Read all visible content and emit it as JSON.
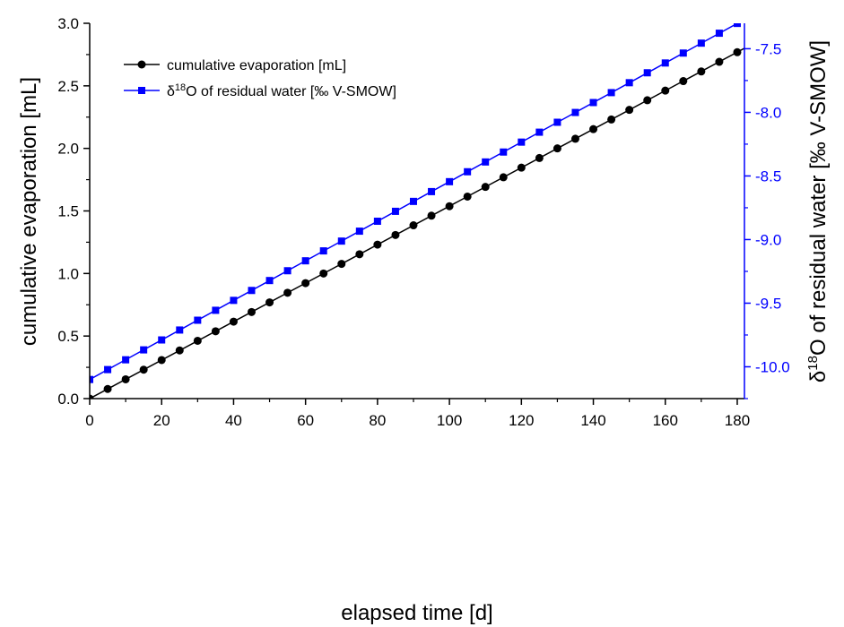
{
  "chart_data": {
    "type": "line",
    "x_axis": {
      "label": "elapsed time [d]",
      "range": [
        0,
        182
      ],
      "ticks": [
        0,
        20,
        40,
        60,
        80,
        100,
        120,
        140,
        160,
        180
      ],
      "tick_labels": [
        "0",
        "20",
        "40",
        "60",
        "80",
        "100",
        "120",
        "140",
        "160",
        "180"
      ]
    },
    "y_axis_left": {
      "label": "cumulative evaporation [mL]",
      "range": [
        0,
        3
      ],
      "ticks": [
        0,
        0.5,
        1,
        1.5,
        2,
        2.5,
        3
      ],
      "tick_labels": [
        "0.0",
        "0.5",
        "1.0",
        "1.5",
        "2.0",
        "2.5",
        "3.0"
      ]
    },
    "y_axis_right": {
      "label_prefix": "δ",
      "label_sup": "18",
      "label_rest": "O of residual water [‰ V-SMOW]",
      "range": [
        -10.25,
        -7.3
      ],
      "ticks": [
        -10,
        -9.5,
        -9,
        -8.5,
        -8,
        -7.5
      ],
      "tick_labels": [
        "-10.0",
        "-9.5",
        "-9.0",
        "-8.5",
        "-8.0",
        "-7.5"
      ]
    },
    "grid": false,
    "legend_position": "top-left",
    "series": [
      {
        "name": "cumulative evaporation [mL]",
        "axis": "left",
        "color": "#000000",
        "marker": "circle",
        "x": [
          0,
          5,
          10,
          15,
          20,
          25,
          30,
          35,
          40,
          45,
          50,
          55,
          60,
          65,
          70,
          75,
          80,
          85,
          90,
          95,
          100,
          105,
          110,
          115,
          120,
          125,
          130,
          135,
          140,
          145,
          150,
          155,
          160,
          165,
          170,
          175,
          180
        ],
        "y": [
          0,
          0.077,
          0.154,
          0.231,
          0.308,
          0.385,
          0.462,
          0.538,
          0.615,
          0.692,
          0.769,
          0.846,
          0.923,
          1.0,
          1.077,
          1.154,
          1.231,
          1.308,
          1.385,
          1.462,
          1.538,
          1.615,
          1.692,
          1.769,
          1.846,
          1.923,
          2.0,
          2.077,
          2.154,
          2.231,
          2.308,
          2.385,
          2.462,
          2.538,
          2.615,
          2.692,
          2.769
        ],
        "fit_line_x": [
          0,
          182
        ],
        "fit_line_y": [
          0,
          2.8
        ]
      },
      {
        "name_prefix": "δ",
        "name_sup": "18",
        "name_rest": "O of residual water [‰ V-SMOW]",
        "axis": "right",
        "color": "#0000ff",
        "marker": "square",
        "x": [
          0,
          5,
          10,
          15,
          20,
          25,
          30,
          35,
          40,
          45,
          50,
          55,
          60,
          65,
          70,
          75,
          80,
          85,
          90,
          95,
          100,
          105,
          110,
          115,
          120,
          125,
          130,
          135,
          140,
          145,
          150,
          155,
          160,
          165,
          170,
          175,
          180
        ],
        "y": [
          -10.1,
          -10.022,
          -9.945,
          -9.867,
          -9.789,
          -9.711,
          -9.634,
          -9.556,
          -9.478,
          -9.4,
          -9.322,
          -9.245,
          -9.167,
          -9.089,
          -9.012,
          -8.934,
          -8.856,
          -8.778,
          -8.7,
          -8.623,
          -8.545,
          -8.467,
          -8.39,
          -8.312,
          -8.234,
          -8.156,
          -8.078,
          -8.001,
          -7.923,
          -7.845,
          -7.767,
          -7.689,
          -7.612,
          -7.534,
          -7.456,
          -7.378,
          -7.301
        ],
        "fit_line_x": [
          0,
          182
        ],
        "fit_line_y": [
          -10.1,
          -7.27
        ]
      }
    ]
  }
}
